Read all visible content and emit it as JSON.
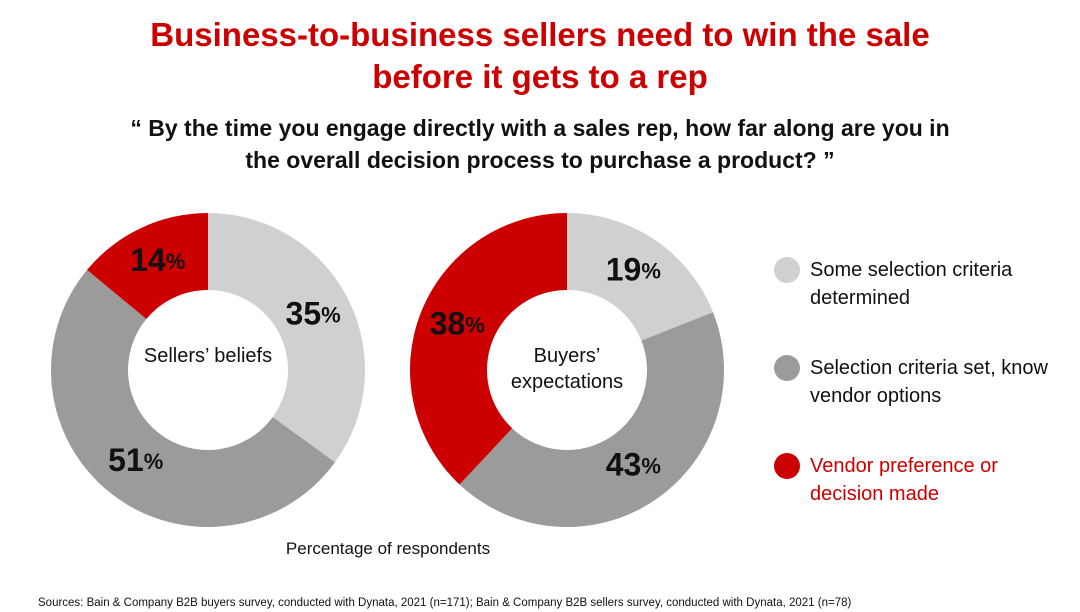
{
  "title": "Business-to-business sellers need to win the sale before it gets to a rep",
  "question": "“ By the time you engage directly with a sales rep, how far along are you in the overall decision process to purchase a product? ”",
  "axis_label": "Percentage of respondents",
  "source": "Sources: Bain & Company B2B buyers survey, conducted with Dynata, 2021 (n=171); Bain & Company B2B sellers survey, conducted with Dynata, 2021 (n=78)",
  "chart_data": [
    {
      "type": "pie",
      "center_label": "Sellers’ beliefs",
      "categories": [
        "Some selection criteria determined",
        "Selection criteria set, know vendor options",
        "Vendor preference or decision made"
      ],
      "values": [
        35,
        51,
        14
      ],
      "value_labels": [
        "35%",
        "51%",
        "14%"
      ],
      "colors": [
        "#d0d0d0",
        "#9b9b9b",
        "#cc0000"
      ]
    },
    {
      "type": "pie",
      "center_label": "Buyers’ expectations",
      "categories": [
        "Some selection criteria determined",
        "Selection criteria set, know vendor options",
        "Vendor preference or decision made"
      ],
      "values": [
        19,
        43,
        38
      ],
      "value_labels": [
        "19%",
        "43%",
        "38%"
      ],
      "colors": [
        "#d0d0d0",
        "#9b9b9b",
        "#cc0000"
      ]
    }
  ]
}
